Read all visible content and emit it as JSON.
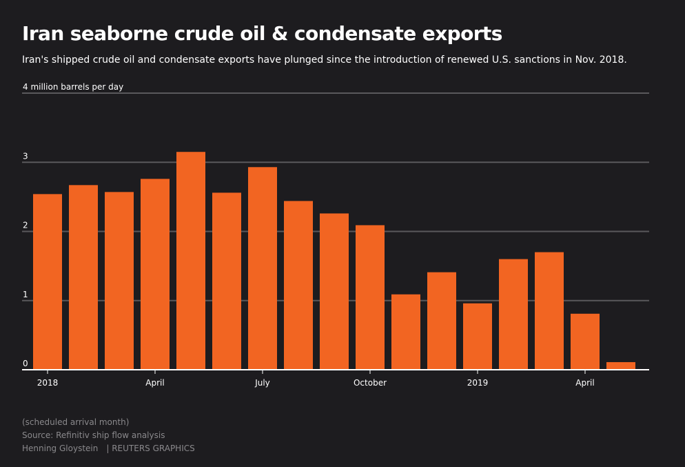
{
  "title": "Iran seaborne crude oil & condensate exports",
  "subtitle": "Iran's shipped crude oil and condensate exports have plunged since the introduction of renewed U.S. sanctions in Nov. 2018.",
  "footer": {
    "note": "(scheduled arrival month)",
    "source": "Source: Refinitiv ship flow analysis",
    "author": "Henning Gloystein",
    "agency": "| REUTERS GRAPHICS"
  },
  "colors": {
    "bar": "#f26522",
    "grid": "#5a595c",
    "axis": "#ffffff",
    "background": "#1d1c1f"
  },
  "chart_data": {
    "type": "bar",
    "title": "Iran seaborne crude oil & condensate exports",
    "ylabel": "million barrels per day",
    "ylim": [
      0,
      4
    ],
    "yticks": [
      {
        "value": 0,
        "label": "0"
      },
      {
        "value": 1,
        "label": "1"
      },
      {
        "value": 2,
        "label": "2"
      },
      {
        "value": 3,
        "label": "3"
      },
      {
        "value": 4,
        "label": "4 million barrels per day"
      }
    ],
    "categories": [
      "2018-01",
      "2018-02",
      "2018-03",
      "2018-04",
      "2018-05",
      "2018-06",
      "2018-07",
      "2018-08",
      "2018-09",
      "2018-10",
      "2018-11",
      "2018-12",
      "2019-01",
      "2019-02",
      "2019-03",
      "2019-04",
      "2019-05"
    ],
    "values": [
      2.54,
      2.67,
      2.57,
      2.76,
      3.15,
      2.56,
      2.93,
      2.44,
      2.26,
      2.09,
      1.09,
      1.41,
      0.96,
      1.6,
      1.7,
      0.81,
      0.11
    ],
    "xticks": [
      {
        "index": 0,
        "label": "2018"
      },
      {
        "index": 3,
        "label": "April"
      },
      {
        "index": 6,
        "label": "July"
      },
      {
        "index": 9,
        "label": "October"
      },
      {
        "index": 12,
        "label": "2019"
      },
      {
        "index": 15,
        "label": "April"
      }
    ],
    "grid": true,
    "legend": "none"
  }
}
